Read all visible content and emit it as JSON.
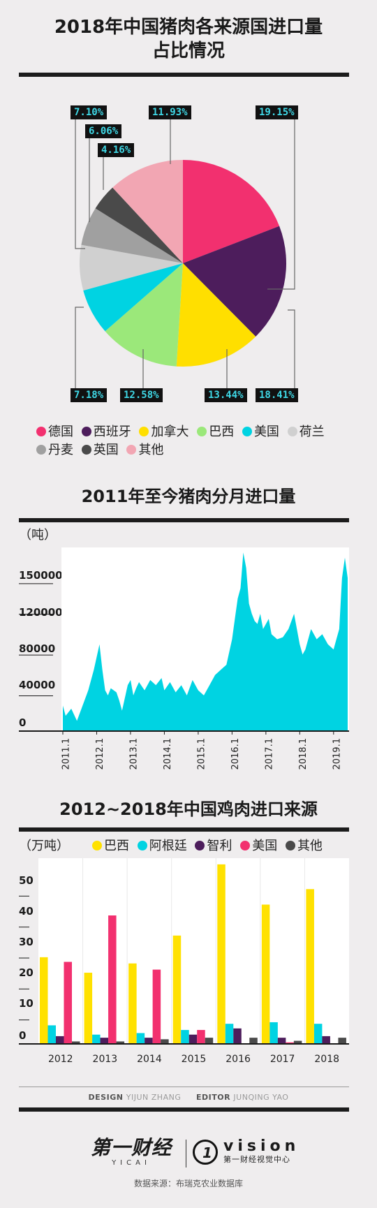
{
  "colors": {
    "germany": "#f2306f",
    "spain": "#4d1d5c",
    "canada": "#ffdf00",
    "brazil": "#9be87a",
    "usa": "#00d3e2",
    "netherlands": "#d0d0d0",
    "denmark": "#a0a0a0",
    "uk": "#4a4a4a",
    "other": "#f2a6b3",
    "area": "#00d3e2",
    "brazil_bar": "#ffe100",
    "argentina_bar": "#00d3e2",
    "chile_bar": "#4d1d5c",
    "usa_bar": "#f2306f",
    "other_bar": "#4a4a4a",
    "label_bg": "#111111",
    "label_text": "#3fd8e6"
  },
  "chart_data": [
    {
      "type": "pie",
      "title": "2018年中国猪肉各来源国进口量占比情况",
      "title_line1": "2018年中国猪肉各来源国进口量",
      "title_line2": "占比情况",
      "slices": [
        {
          "name": "德国",
          "value": 19.15,
          "label": "19.15%"
        },
        {
          "name": "西班牙",
          "value": 18.41,
          "label": "18.41%"
        },
        {
          "name": "加拿大",
          "value": 13.44,
          "label": "13.44%"
        },
        {
          "name": "巴西",
          "value": 12.58,
          "label": "12.58%"
        },
        {
          "name": "美国",
          "value": 7.18,
          "label": "7.18%"
        },
        {
          "name": "荷兰",
          "value": 7.1,
          "label": "7.10%"
        },
        {
          "name": "丹麦",
          "value": 6.06,
          "label": "6.06%"
        },
        {
          "name": "英国",
          "value": 4.16,
          "label": "4.16%"
        },
        {
          "name": "其他",
          "value": 11.93,
          "label": "11.93%"
        }
      ],
      "legend_position": "bottom"
    },
    {
      "type": "area",
      "title": "2011年至今猪肉分月进口量",
      "ylabel": "（吨）",
      "ylim": [
        0,
        180000
      ],
      "yticks": [
        0,
        40000,
        80000,
        120000,
        150000
      ],
      "x_tick_labels": [
        "2011.1",
        "2012.1",
        "2013.1",
        "2014.1",
        "2015.1",
        "2016.1",
        "2017.1",
        "2018.1",
        "2019.1"
      ],
      "x": [
        "2011.1",
        "2011.2",
        "2011.4",
        "2011.6",
        "2011.8",
        "2011.10",
        "2011.12",
        "2012.2",
        "2012.3",
        "2012.4",
        "2012.5",
        "2012.6",
        "2012.8",
        "2012.9",
        "2012.10",
        "2012.12",
        "2013.1",
        "2013.2",
        "2013.3",
        "2013.4",
        "2013.6",
        "2013.8",
        "2013.10",
        "2013.12",
        "2014.1",
        "2014.3",
        "2014.5",
        "2014.7",
        "2014.9",
        "2014.11",
        "2015.1",
        "2015.3",
        "2015.5",
        "2015.7",
        "2015.9",
        "2015.11",
        "2016.1",
        "2016.2",
        "2016.3",
        "2016.4",
        "2016.5",
        "2016.6",
        "2016.7",
        "2016.8",
        "2016.9",
        "2016.10",
        "2016.11",
        "2016.12",
        "2017.1",
        "2017.2",
        "2017.3",
        "2017.5",
        "2017.7",
        "2017.9",
        "2017.11",
        "2018.1",
        "2018.2",
        "2018.3",
        "2018.5",
        "2018.7",
        "2018.9",
        "2018.11",
        "2019.1",
        "2019.2",
        "2019.3",
        "2019.4",
        "2019.5",
        "2019.6"
      ],
      "y": [
        25000,
        15000,
        22000,
        10000,
        25000,
        40000,
        60000,
        85000,
        60000,
        40000,
        35000,
        42000,
        38000,
        30000,
        20000,
        45000,
        50000,
        35000,
        42000,
        48000,
        40000,
        50000,
        45000,
        52000,
        40000,
        48000,
        38000,
        45000,
        35000,
        50000,
        40000,
        35000,
        45000,
        55000,
        60000,
        65000,
        90000,
        110000,
        130000,
        140000,
        175000,
        160000,
        125000,
        115000,
        108000,
        105000,
        115000,
        100000,
        105000,
        110000,
        95000,
        90000,
        92000,
        100000,
        115000,
        85000,
        75000,
        80000,
        100000,
        90000,
        95000,
        85000,
        80000,
        90000,
        100000,
        150000,
        170000,
        150000
      ]
    },
    {
      "type": "bar",
      "title": "2012~2018年中国鸡肉进口来源",
      "ylabel": "（万吨）",
      "ylim": [
        0,
        60
      ],
      "yticks": [
        0,
        10,
        20,
        30,
        40,
        50
      ],
      "categories": [
        "2012",
        "2013",
        "2014",
        "2015",
        "2016",
        "2017",
        "2018"
      ],
      "series": [
        {
          "name": "巴西",
          "values": [
            28,
            23,
            26,
            35,
            58,
            45,
            50
          ]
        },
        {
          "name": "阿根廷",
          "values": [
            6,
            3,
            3.5,
            4.5,
            6.5,
            7,
            6.5
          ]
        },
        {
          "name": "智利",
          "values": [
            2.5,
            2,
            2,
            3,
            5,
            2,
            2.5
          ]
        },
        {
          "name": "美国",
          "values": [
            26.5,
            41.5,
            24,
            4.5,
            0,
            0.5,
            0
          ]
        },
        {
          "name": "其他",
          "values": [
            0.8,
            0.8,
            1.5,
            2,
            2,
            1,
            2
          ]
        }
      ],
      "legend_position": "top"
    }
  ],
  "credits": {
    "design_label": "DESIGN",
    "design_name": "YIJUN ZHANG",
    "editor_label": "EDITOR",
    "editor_name": "JUNQING YAO"
  },
  "logos": {
    "yicai_cn": "第一财经",
    "yicai_en": "YICAI",
    "vision_en": "vision",
    "vision_cn": "第一财经视觉中心"
  },
  "source": "数据来源：布瑞克农业数据库"
}
